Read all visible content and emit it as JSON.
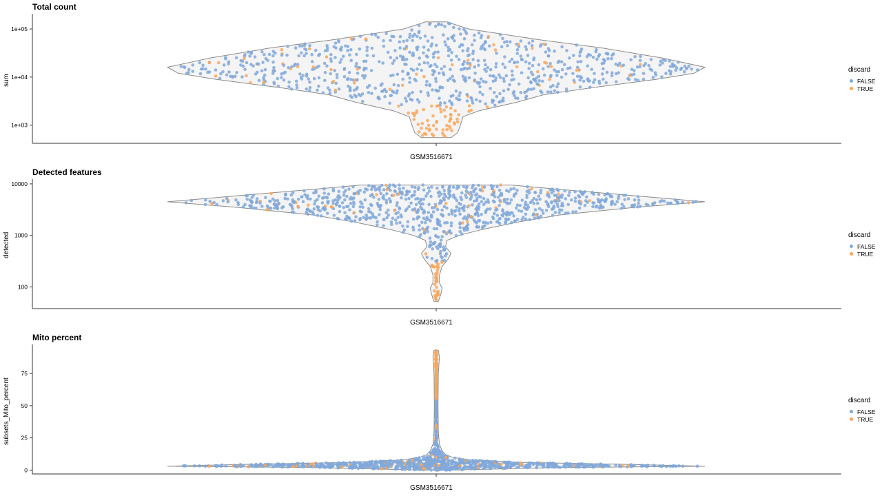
{
  "legend": {
    "title": "discard",
    "items": [
      {
        "label": "FALSE",
        "color": "#80a8d9"
      },
      {
        "label": "TRUE",
        "color": "#f9a75a"
      }
    ]
  },
  "colors": {
    "false": "#80a8d9",
    "true": "#f9a75a",
    "outline": "#8a8a8a",
    "axis": "#333333"
  },
  "chart_data": [
    {
      "type": "violin",
      "title": "Total count",
      "xlabel": "",
      "ylabel": "sum",
      "category": "GSM3516671",
      "yscale": "log10",
      "ylim": [
        420,
        200000
      ],
      "yticks": [
        1000,
        10000,
        100000
      ],
      "ytick_labels": [
        "1e+03",
        "1e+04",
        "1e+05"
      ],
      "point_series": [
        {
          "name": "FALSE",
          "approx_count": 620
        },
        {
          "name": "TRUE",
          "approx_count": 260
        }
      ],
      "density_profile": [
        [
          140000,
          0.04
        ],
        [
          100000,
          0.12
        ],
        [
          60000,
          0.38
        ],
        [
          40000,
          0.62
        ],
        [
          25000,
          0.84
        ],
        [
          16000,
          1.0
        ],
        [
          12000,
          0.96
        ],
        [
          9000,
          0.82
        ],
        [
          6000,
          0.58
        ],
        [
          4300,
          0.4
        ],
        [
          3000,
          0.3
        ],
        [
          2000,
          0.16
        ],
        [
          1500,
          0.1
        ],
        [
          1000,
          0.09
        ],
        [
          700,
          0.08
        ],
        [
          550,
          0.055
        ]
      ]
    },
    {
      "type": "violin",
      "title": "Detected features",
      "xlabel": "",
      "ylabel": "detected",
      "category": "GSM3516671",
      "yscale": "log10",
      "ylim": [
        38,
        12000
      ],
      "yticks": [
        100,
        1000,
        10000
      ],
      "ytick_labels": [
        "100",
        "1000",
        "10000"
      ],
      "point_series": [
        {
          "name": "FALSE",
          "approx_count": 720
        },
        {
          "name": "TRUE",
          "approx_count": 200
        }
      ],
      "density_profile": [
        [
          9500,
          0.28
        ],
        [
          8000,
          0.44
        ],
        [
          6000,
          0.72
        ],
        [
          4500,
          1.0
        ],
        [
          3500,
          0.74
        ],
        [
          2500,
          0.46
        ],
        [
          1800,
          0.3
        ],
        [
          1300,
          0.17
        ],
        [
          1000,
          0.085
        ],
        [
          800,
          0.04
        ],
        [
          600,
          0.035
        ],
        [
          450,
          0.055
        ],
        [
          350,
          0.045
        ],
        [
          250,
          0.022
        ],
        [
          170,
          0.012
        ],
        [
          120,
          0.012
        ],
        [
          95,
          0.022
        ],
        [
          75,
          0.018
        ],
        [
          60,
          0.012
        ],
        [
          52,
          0.008
        ]
      ]
    },
    {
      "type": "violin",
      "title": "Mito percent",
      "xlabel": "",
      "ylabel": "subsets_Mito_percent",
      "category": "GSM3516671",
      "yscale": "linear",
      "ylim": [
        -3,
        97
      ],
      "yticks": [
        0,
        25,
        50,
        75
      ],
      "ytick_labels": [
        "0",
        "25",
        "50",
        "75"
      ],
      "point_series": [
        {
          "name": "FALSE",
          "approx_count": 900
        },
        {
          "name": "TRUE",
          "approx_count": 260
        }
      ],
      "density_profile": [
        [
          0,
          0.06
        ],
        [
          2,
          0.45
        ],
        [
          3,
          1.0
        ],
        [
          4.5,
          0.7
        ],
        [
          6,
          0.32
        ],
        [
          8,
          0.12
        ],
        [
          10,
          0.06
        ],
        [
          12,
          0.035
        ],
        [
          15,
          0.022
        ],
        [
          20,
          0.012
        ],
        [
          30,
          0.008
        ],
        [
          50,
          0.007
        ],
        [
          75,
          0.008
        ],
        [
          88,
          0.012
        ],
        [
          93,
          0.008
        ]
      ]
    }
  ]
}
